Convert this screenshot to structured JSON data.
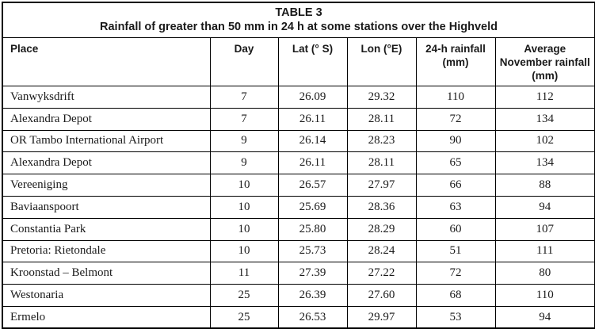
{
  "table": {
    "caption_line1": "TABLE 3",
    "caption_line2": "Rainfall of greater than 50 mm in 24 h at some stations over the Highveld",
    "columns": [
      {
        "key": "place",
        "label": "Place"
      },
      {
        "key": "day",
        "label": "Day"
      },
      {
        "key": "lat",
        "label": "Lat (° S)"
      },
      {
        "key": "lon",
        "label": "Lon (°E)"
      },
      {
        "key": "rain24h",
        "label": "24-h rainfall\n(mm)"
      },
      {
        "key": "avg_november",
        "label": "Average\nNovember rainfall\n(mm)"
      }
    ],
    "rows": [
      [
        "Vanwyksdrift",
        "7",
        "26.09",
        "29.32",
        "110",
        "112"
      ],
      [
        "Alexandra Depot",
        "7",
        "26.11",
        "28.11",
        "72",
        "134"
      ],
      [
        "OR Tambo International Airport",
        "9",
        "26.14",
        "28.23",
        "90",
        "102"
      ],
      [
        "Alexandra Depot",
        "9",
        "26.11",
        "28.11",
        "65",
        "134"
      ],
      [
        "Vereeniging",
        "10",
        "26.57",
        "27.97",
        "66",
        "88"
      ],
      [
        "Baviaanspoort",
        "10",
        "25.69",
        "28.36",
        "63",
        "94"
      ],
      [
        "Constantia Park",
        "10",
        "25.80",
        "28.29",
        "60",
        "107"
      ],
      [
        "Pretoria: Rietondale",
        "10",
        "25.73",
        "28.24",
        "51",
        "111"
      ],
      [
        "Kroonstad – Belmont",
        "11",
        "27.39",
        "27.22",
        "72",
        "80"
      ],
      [
        "Westonaria",
        "25",
        "26.39",
        "27.60",
        "68",
        "110"
      ],
      [
        "Ermelo",
        "25",
        "26.53",
        "29.97",
        "53",
        "94"
      ]
    ],
    "colors": {
      "border": "#000000",
      "text": "#1a1a1a",
      "background": "#ffffff"
    }
  }
}
